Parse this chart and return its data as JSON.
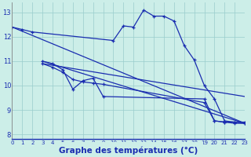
{
  "bg_color": "#cceee8",
  "line_color": "#1a2db0",
  "grid_color": "#99cccc",
  "xlabel": "Graphe des températures (°C)",
  "xlabel_fontsize": 7.5,
  "ylabel_ticks": [
    8,
    9,
    10,
    11,
    12,
    13
  ],
  "xlim": [
    0,
    23
  ],
  "ylim": [
    7.8,
    13.4
  ],
  "series1_main": {
    "x": [
      0,
      1,
      2,
      10,
      11,
      12,
      13,
      14,
      15,
      16,
      17,
      18,
      19,
      20,
      21,
      22,
      23
    ],
    "y": [
      12.4,
      12.3,
      12.2,
      11.85,
      12.45,
      12.4,
      13.1,
      12.85,
      12.85,
      12.65,
      11.65,
      11.05,
      10.0,
      9.45,
      8.55,
      8.5,
      8.5
    ]
  },
  "series2_main": {
    "x": [
      3,
      4,
      5,
      6,
      7,
      8,
      9,
      19,
      20,
      21,
      22,
      23
    ],
    "y": [
      11.0,
      10.9,
      10.65,
      9.85,
      10.2,
      10.3,
      9.55,
      9.45,
      8.55,
      8.5,
      8.5,
      8.45
    ]
  },
  "series3_main": {
    "x": [
      3,
      4,
      5,
      6,
      7,
      8,
      9,
      19,
      20,
      21,
      22,
      23
    ],
    "y": [
      10.9,
      10.75,
      10.55,
      10.25,
      10.15,
      10.1,
      10.05,
      9.3,
      8.55,
      8.5,
      8.45,
      8.45
    ]
  },
  "ref_line1": {
    "x": [
      0,
      23
    ],
    "y": [
      12.4,
      8.45
    ]
  },
  "ref_line2": {
    "x": [
      3,
      23
    ],
    "y": [
      11.0,
      8.45
    ]
  },
  "ref_line3": {
    "x": [
      3,
      23
    ],
    "y": [
      10.9,
      9.55
    ]
  }
}
